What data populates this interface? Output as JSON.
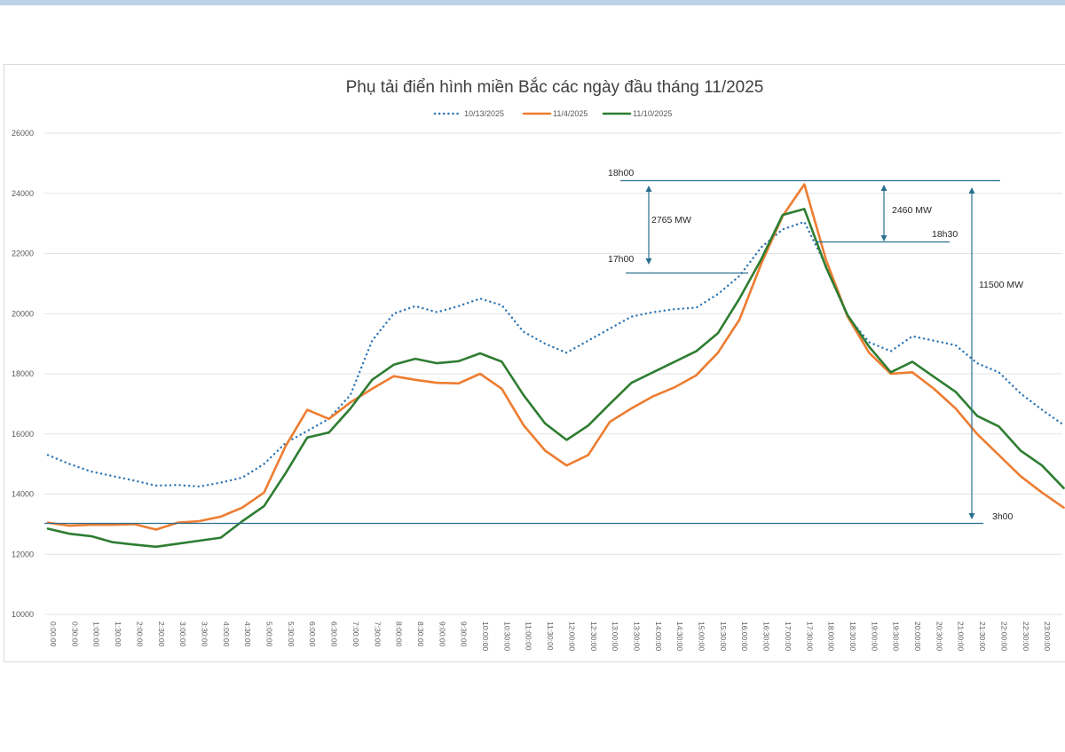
{
  "chart_data": {
    "type": "line",
    "title": "Phụ tải điển hình miền Bắc các ngày đầu tháng 11/2025",
    "ylim": [
      10000,
      26000
    ],
    "yticks": [
      10000,
      12000,
      14000,
      16000,
      18000,
      20000,
      22000,
      24000,
      26000
    ],
    "grid": true,
    "legend_position": "top",
    "categories": [
      "0:00:00",
      "0:30:00",
      "1:00:00",
      "1:30:00",
      "2:00:00",
      "2:30:00",
      "3:00:00",
      "3:30:00",
      "4:00:00",
      "4:30:00",
      "5:00:00",
      "5:30:00",
      "6:00:00",
      "6:30:00",
      "7:00:00",
      "7:30:00",
      "8:00:00",
      "8:30:00",
      "9:00:00",
      "9:30:00",
      "10:00:00",
      "10:30:00",
      "11:00:00",
      "11:30:00",
      "12:00:00",
      "12:30:00",
      "13:00:00",
      "13:30:00",
      "14:00:00",
      "14:30:00",
      "15:00:00",
      "15:30:00",
      "16:00:00",
      "16:30:00",
      "17:00:00",
      "17:30:00",
      "18:00:00",
      "18:30:00",
      "19:00:00",
      "19:30:00",
      "20:00:00",
      "20:30:00",
      "21:00:00",
      "21:30:00",
      "22:00:00",
      "22:30:00",
      "23:00:00",
      "23:30:00"
    ],
    "series": [
      {
        "name": "10/13/2025",
        "color": "#2e75b6",
        "style": "dotted",
        "values": [
          15300,
          15000,
          14750,
          14600,
          14450,
          14280,
          14300,
          14250,
          14380,
          14550,
          15000,
          15700,
          16100,
          16500,
          17300,
          19100,
          20000,
          20250,
          20050,
          20250,
          20500,
          20280,
          19400,
          19000,
          18700,
          19100,
          19500,
          19900,
          20050,
          20150,
          20200,
          20650,
          21250,
          22200,
          22800,
          23050,
          21600,
          19900,
          19050,
          18750,
          19250,
          19100,
          18950,
          18350,
          18050,
          17350,
          16800,
          16300
        ]
      },
      {
        "name": "11/4/2025",
        "color": "#ed7d31",
        "style": "solid",
        "values": [
          13050,
          12950,
          12980,
          12980,
          13000,
          12820,
          13050,
          13100,
          13250,
          13550,
          14050,
          15600,
          16800,
          16500,
          17050,
          17500,
          17920,
          17800,
          17700,
          17680,
          18000,
          17500,
          16300,
          15450,
          14950,
          15300,
          16400,
          16850,
          17250,
          17550,
          17950,
          18700,
          19800,
          21650,
          23250,
          24300,
          21800,
          19900,
          18700,
          18000,
          18050,
          17500,
          16850,
          16000,
          15300,
          14600,
          14050,
          13550
        ]
      },
      {
        "name": "11/10/2025",
        "color": "#2e7d32",
        "style": "solid",
        "values": [
          12850,
          12680,
          12600,
          12400,
          12320,
          12250,
          12350,
          12450,
          12550,
          13100,
          13600,
          14700,
          15880,
          16050,
          16850,
          17800,
          18300,
          18500,
          18350,
          18420,
          18680,
          18400,
          17300,
          16350,
          15800,
          16280,
          17000,
          17700,
          18050,
          18400,
          18750,
          19350,
          20500,
          21800,
          23280,
          23480,
          21550,
          19950,
          18900,
          18050,
          18400,
          17900,
          17400,
          16600,
          16250,
          15450,
          14950,
          14200
        ]
      }
    ],
    "annotations": [
      {
        "label": "18h00"
      },
      {
        "label": "17h00"
      },
      {
        "label": "2765 MW"
      },
      {
        "label": "2460 MW"
      },
      {
        "label": "18h30"
      },
      {
        "label": "11500 MW"
      },
      {
        "label": "3h00"
      }
    ]
  }
}
